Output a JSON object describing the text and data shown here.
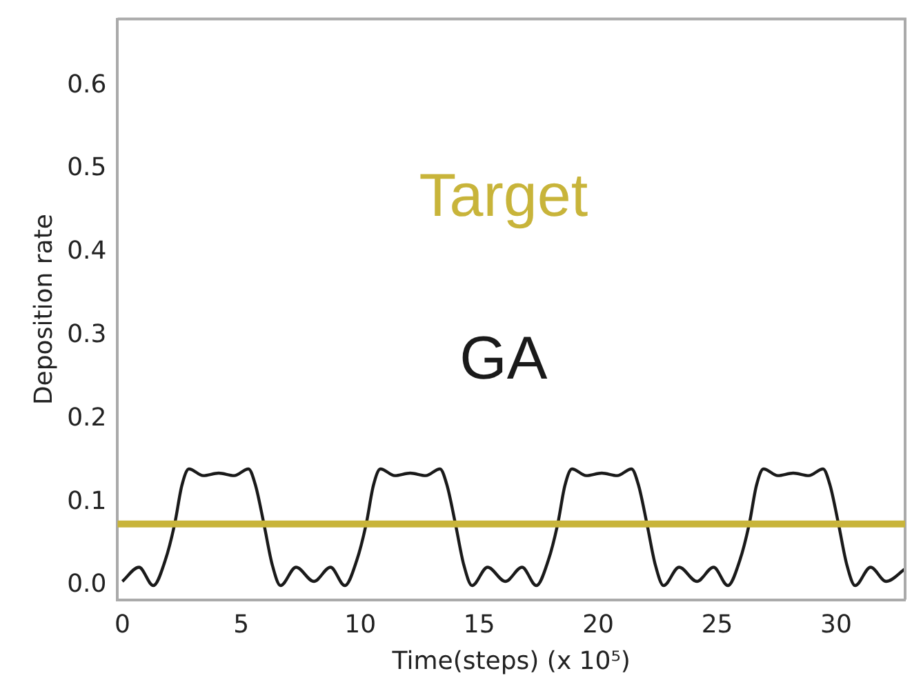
{
  "chart_data": {
    "type": "line",
    "xlabel": "Time(steps) (x 10⁵)",
    "ylabel": "Deposition rate",
    "xlim": [
      -0.2,
      32.9
    ],
    "ylim": [
      -0.017,
      0.68
    ],
    "xticks": [
      0,
      5,
      10,
      15,
      20,
      25,
      30
    ],
    "yticks": [
      {
        "value": 0,
        "label": "0.0"
      },
      {
        "value": 0.1,
        "label": "0.1"
      },
      {
        "value": 0.2,
        "label": "0.2"
      },
      {
        "value": 0.3,
        "label": "0.3"
      },
      {
        "value": 0.4,
        "label": "0.4"
      },
      {
        "value": 0.5,
        "label": "0.5"
      },
      {
        "value": 0.6,
        "label": "0.6"
      }
    ],
    "grid": false,
    "marker": "none",
    "line_style": "solid",
    "series": [
      {
        "name": "GA",
        "color": "#1a1a1a",
        "x": [
          0,
          0.7,
          1.3,
          1.8,
          2.2,
          2.5,
          2.8,
          3.4,
          4.05,
          4.7,
          5.3,
          5.6,
          5.95,
          6.3,
          6.65,
          7.3,
          8.05,
          8.75,
          9.35,
          9.85,
          10.25,
          10.55,
          10.85,
          11.45,
          12.1,
          12.75,
          13.35,
          13.65,
          14.0,
          14.35,
          14.7,
          15.35,
          16.1,
          16.8,
          17.4,
          17.9,
          18.3,
          18.6,
          18.9,
          19.5,
          20.15,
          20.8,
          21.4,
          21.7,
          22.05,
          22.4,
          22.75,
          23.4,
          24.15,
          24.85,
          25.45,
          25.95,
          26.35,
          26.65,
          26.95,
          27.55,
          28.2,
          28.85,
          29.45,
          29.75,
          30.1,
          30.45,
          30.8,
          31.45,
          32.1,
          32.9
        ],
        "values": [
          0.005,
          0.022,
          0,
          0.03,
          0.074,
          0.12,
          0.14,
          0.132,
          0.135,
          0.132,
          0.14,
          0.12,
          0.074,
          0.025,
          0,
          0.022,
          0.005,
          0.022,
          0,
          0.03,
          0.074,
          0.12,
          0.14,
          0.132,
          0.135,
          0.132,
          0.14,
          0.12,
          0.074,
          0.025,
          0,
          0.022,
          0.005,
          0.022,
          0,
          0.03,
          0.074,
          0.12,
          0.14,
          0.132,
          0.135,
          0.132,
          0.14,
          0.12,
          0.074,
          0.025,
          0,
          0.022,
          0.005,
          0.022,
          0,
          0.03,
          0.074,
          0.12,
          0.14,
          0.132,
          0.135,
          0.132,
          0.14,
          0.12,
          0.074,
          0.025,
          0,
          0.022,
          0.005,
          0.02
        ]
      }
    ],
    "ref_lines": [
      {
        "axis": "y",
        "value": 0.074,
        "label": "Target",
        "color": "#c8b43a"
      }
    ]
  }
}
